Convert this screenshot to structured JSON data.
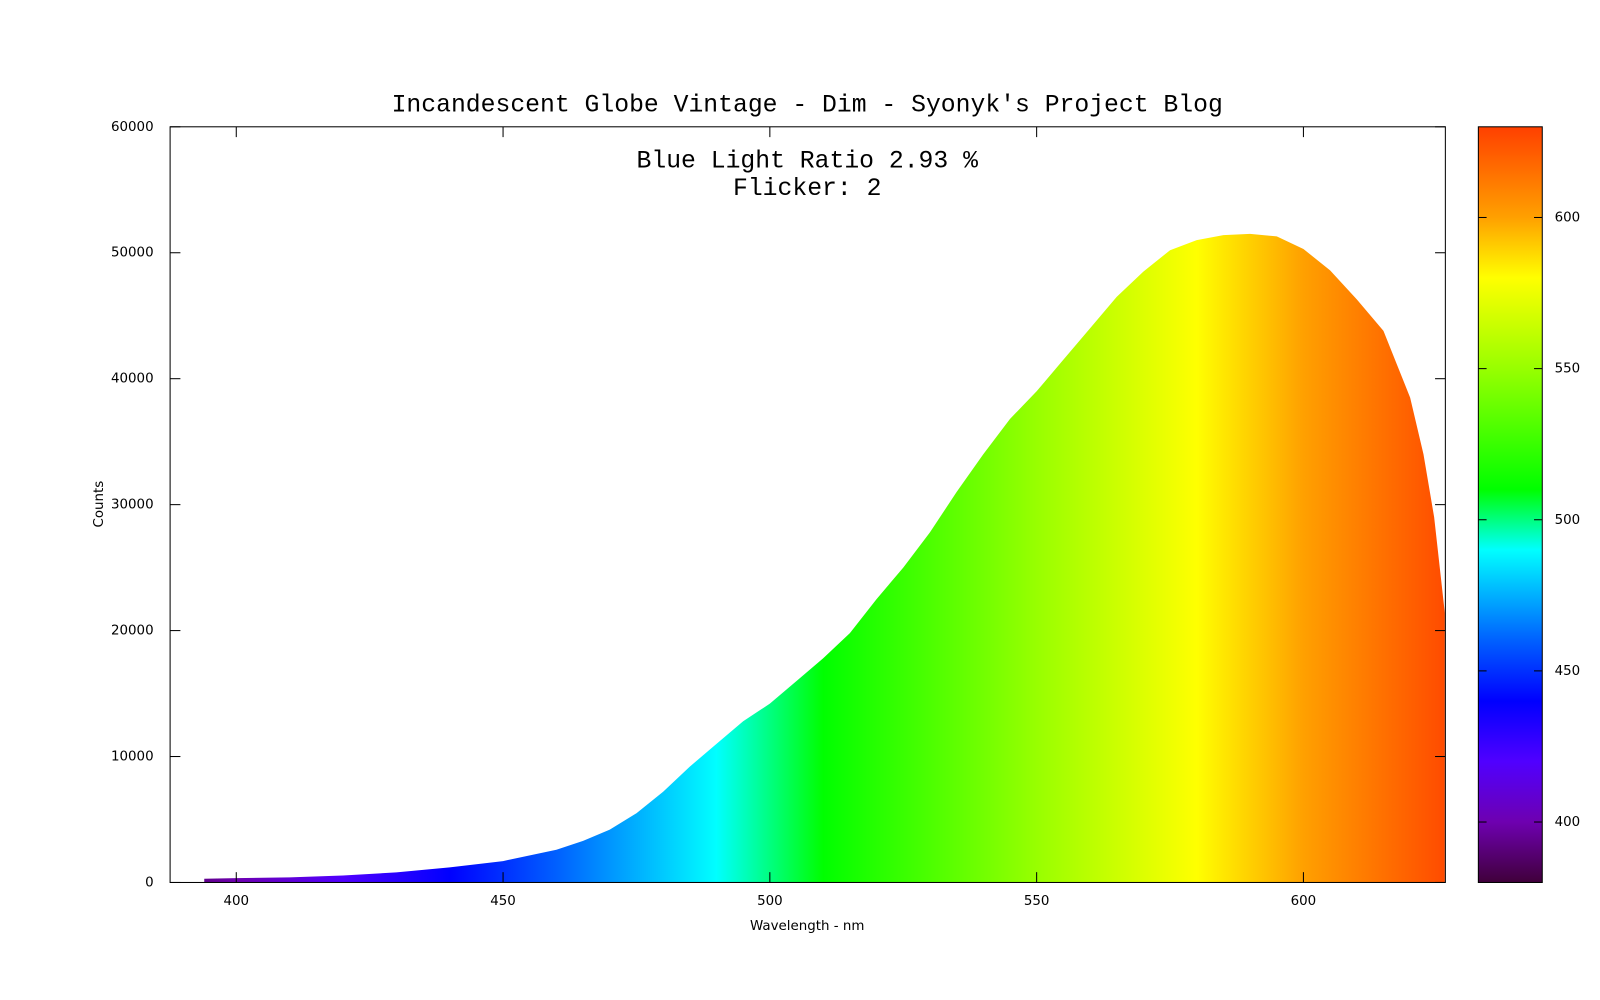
{
  "chart_data": {
    "type": "area",
    "title": "Incandescent Globe Vintage - Dim - Syonyk's Project Blog",
    "annotations": [
      "Blue Light Ratio 2.93 %",
      "Flicker: 2"
    ],
    "x_label": "Wavelength - nm",
    "y_label": "Counts",
    "x": [
      394,
      400,
      410,
      420,
      430,
      440,
      450,
      460,
      465,
      470,
      475,
      480,
      485,
      490,
      495,
      500,
      505,
      510,
      515,
      520,
      525,
      530,
      535,
      540,
      545,
      550,
      555,
      560,
      565,
      570,
      575,
      580,
      585,
      590,
      595,
      600,
      605,
      610,
      615,
      620,
      622.5,
      624.5,
      626.5
    ],
    "values": [
      300,
      350,
      400,
      550,
      800,
      1200,
      1700,
      2600,
      3300,
      4200,
      5500,
      7200,
      9200,
      11000,
      12800,
      14200,
      16000,
      17800,
      19800,
      22500,
      25000,
      27800,
      31000,
      34000,
      36800,
      39000,
      41500,
      44000,
      46500,
      48500,
      50200,
      51000,
      51400,
      51500,
      51300,
      50300,
      48600,
      46300,
      43800,
      38500,
      34000,
      29000,
      21400
    ],
    "xlim": [
      387.6,
      626.6
    ],
    "xticks": [
      400,
      450,
      500,
      550,
      600
    ],
    "ylim": [
      0,
      60000
    ],
    "yticks": [
      0,
      10000,
      20000,
      30000,
      40000,
      50000,
      60000
    ],
    "colorbar": {
      "lim": [
        380,
        630
      ],
      "ticks": [
        400,
        450,
        500,
        550,
        600
      ]
    },
    "palette": [
      {
        "value": 380,
        "color": "#40003a"
      },
      {
        "value": 400,
        "color": "#6e00b0"
      },
      {
        "value": 420,
        "color": "#5000ff"
      },
      {
        "value": 440,
        "color": "#0000ff"
      },
      {
        "value": 460,
        "color": "#0060ff"
      },
      {
        "value": 490,
        "color": "#00ffff"
      },
      {
        "value": 510,
        "color": "#00ff00"
      },
      {
        "value": 550,
        "color": "#98ff00"
      },
      {
        "value": 580,
        "color": "#ffff00"
      },
      {
        "value": 600,
        "color": "#ffa000"
      },
      {
        "value": 630,
        "color": "#ff4000"
      }
    ]
  }
}
